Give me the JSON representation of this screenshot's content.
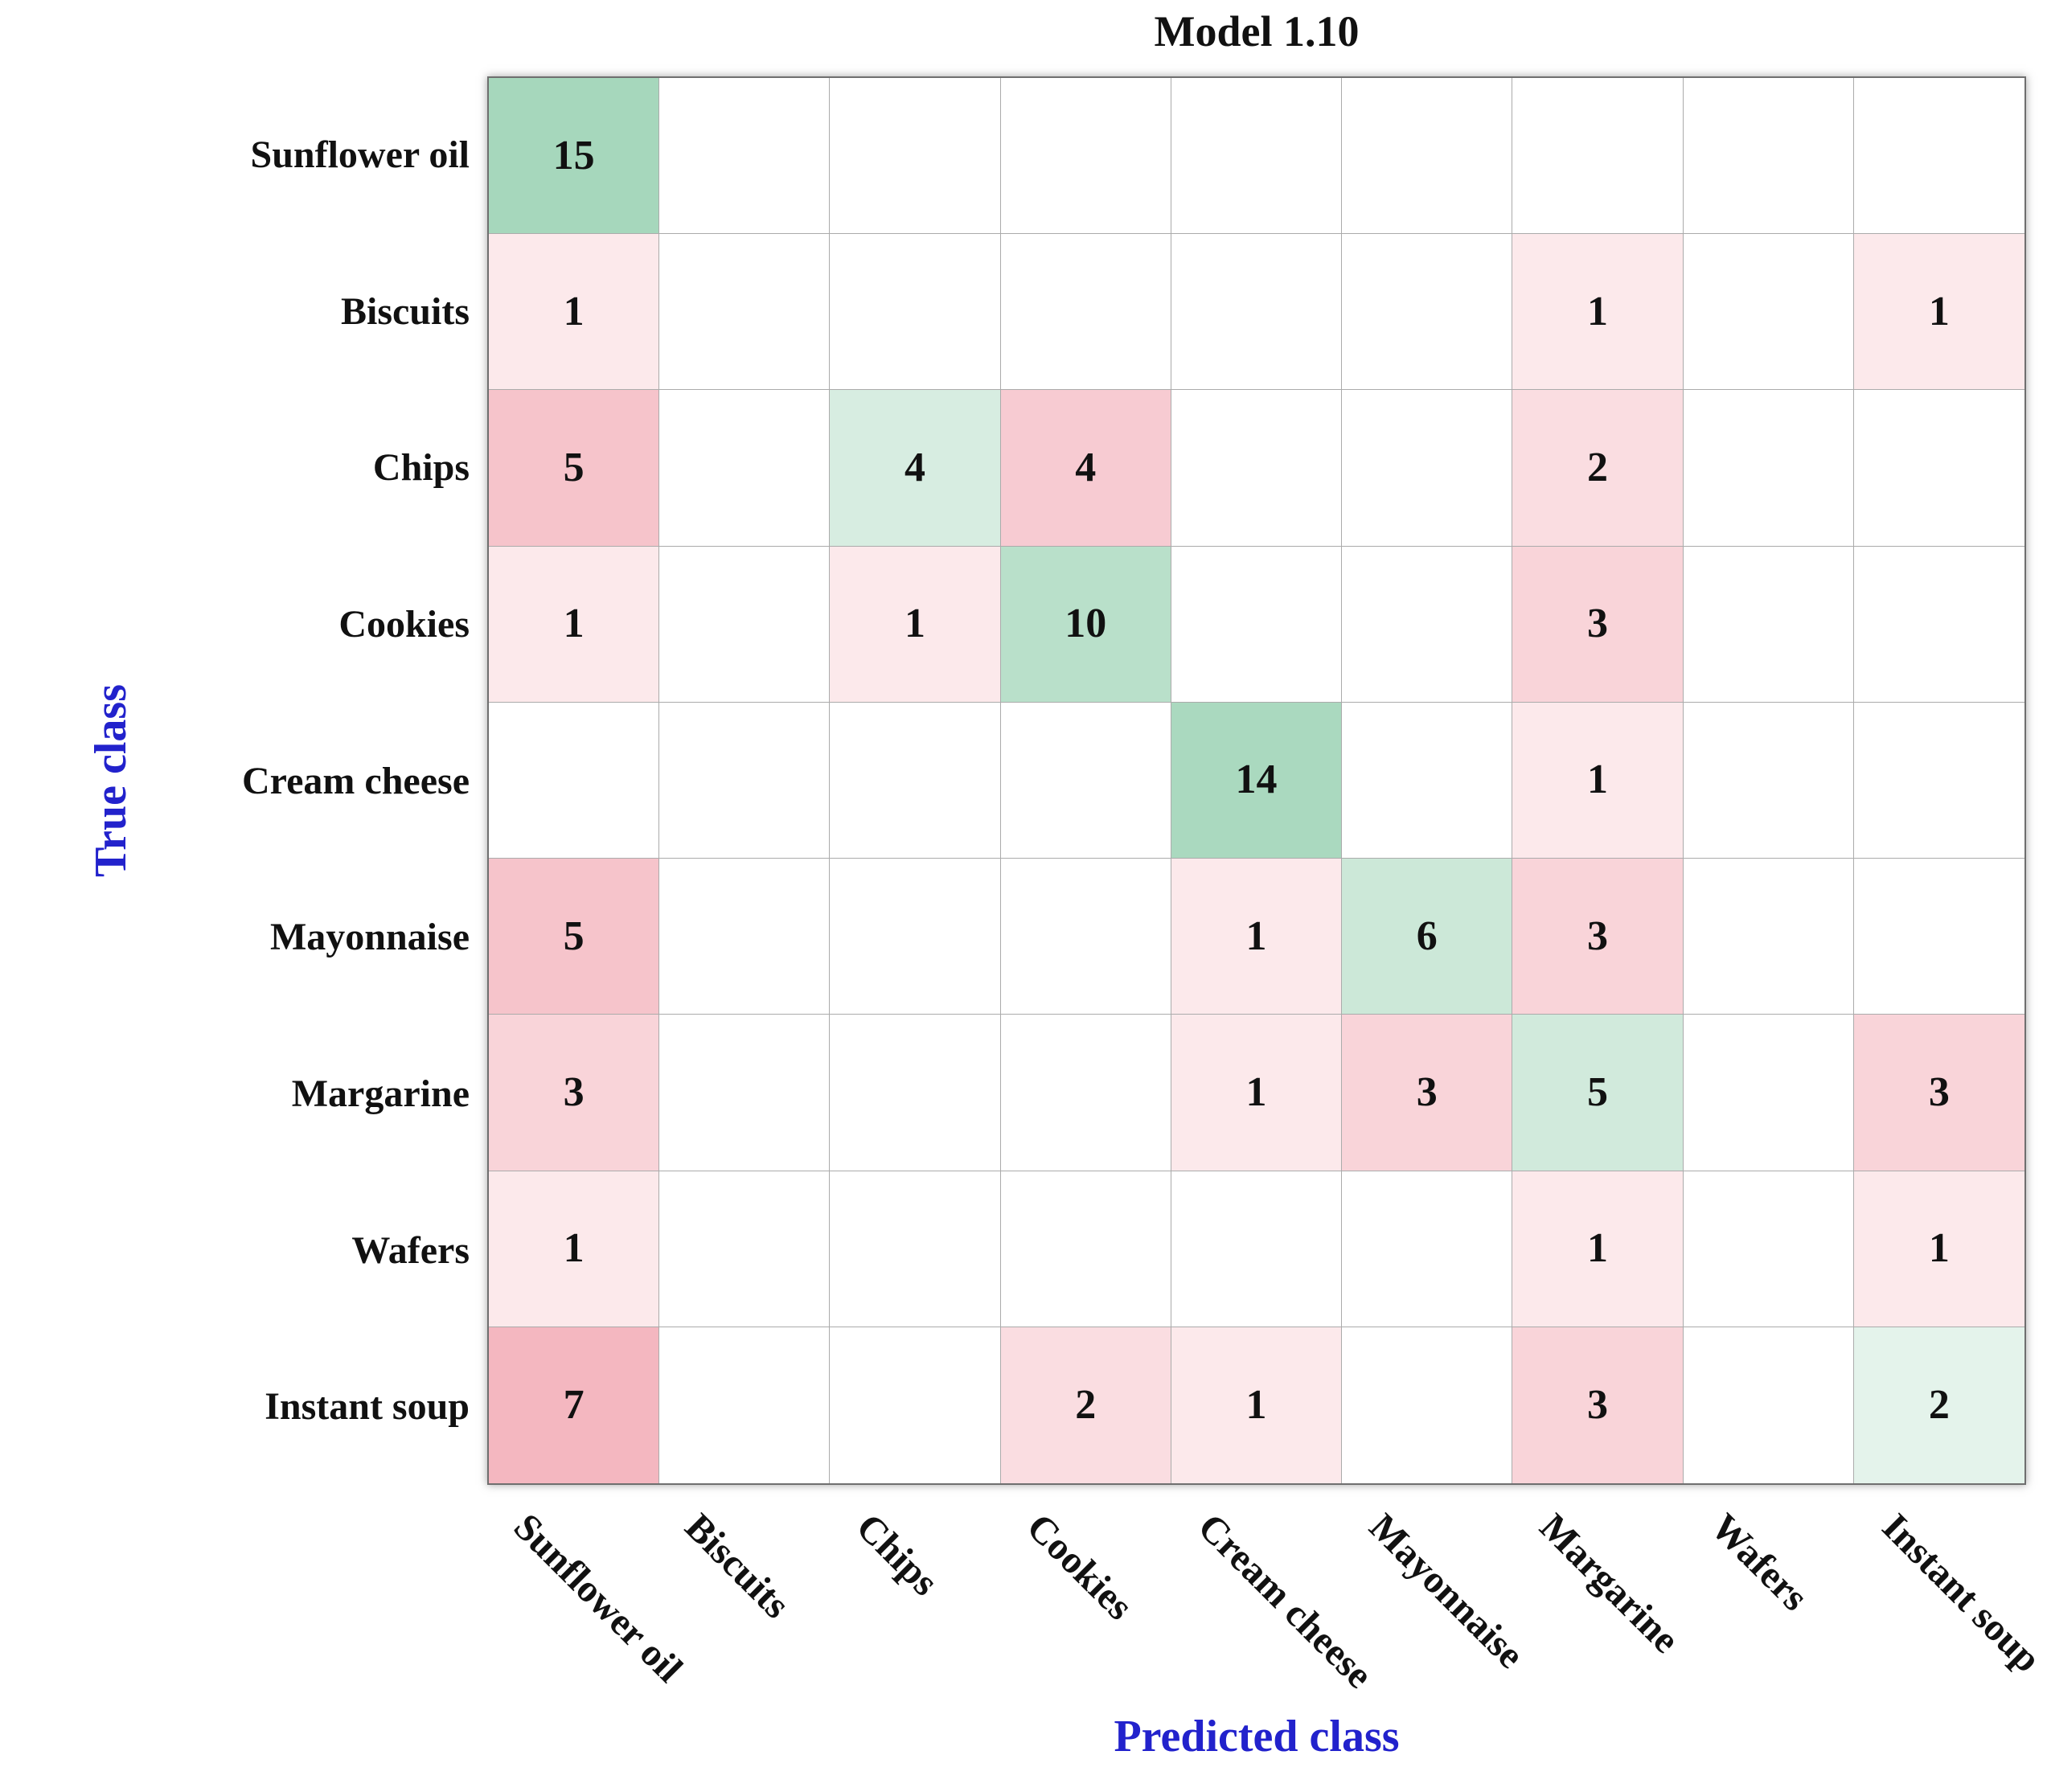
{
  "title": "Model 1.10",
  "axes": {
    "x_label": "Predicted class",
    "y_label": "True class",
    "label_color": "#2222cc"
  },
  "chart_data": {
    "type": "heatmap",
    "subtype": "confusion-matrix",
    "title": "Model 1.10",
    "xlabel": "Predicted class",
    "ylabel": "True class",
    "categories": [
      "Sunflower oil",
      "Biscuits",
      "Chips",
      "Cookies",
      "Cream cheese",
      "Mayonnaise",
      "Margarine",
      "Wafers",
      "Instant soup"
    ],
    "rows_are": "true-class",
    "columns_are": "predicted-class",
    "matrix": [
      [
        15,
        0,
        0,
        0,
        0,
        0,
        0,
        0,
        0
      ],
      [
        1,
        0,
        0,
        0,
        0,
        0,
        1,
        0,
        1
      ],
      [
        5,
        0,
        4,
        4,
        0,
        0,
        2,
        0,
        0
      ],
      [
        1,
        0,
        1,
        10,
        0,
        0,
        3,
        0,
        0
      ],
      [
        0,
        0,
        0,
        0,
        14,
        0,
        1,
        0,
        0
      ],
      [
        5,
        0,
        0,
        0,
        1,
        6,
        3,
        0,
        0
      ],
      [
        3,
        0,
        0,
        0,
        1,
        3,
        5,
        0,
        3
      ],
      [
        1,
        0,
        0,
        0,
        0,
        0,
        1,
        0,
        1
      ],
      [
        7,
        0,
        0,
        2,
        1,
        0,
        3,
        0,
        2
      ]
    ],
    "scale_max": 15,
    "diagonal_color": "#a6d7bc",
    "offdiagonal_color": "#ee8d9b",
    "empty_color": "#ffffff",
    "grid": true,
    "legend_position": "none"
  }
}
